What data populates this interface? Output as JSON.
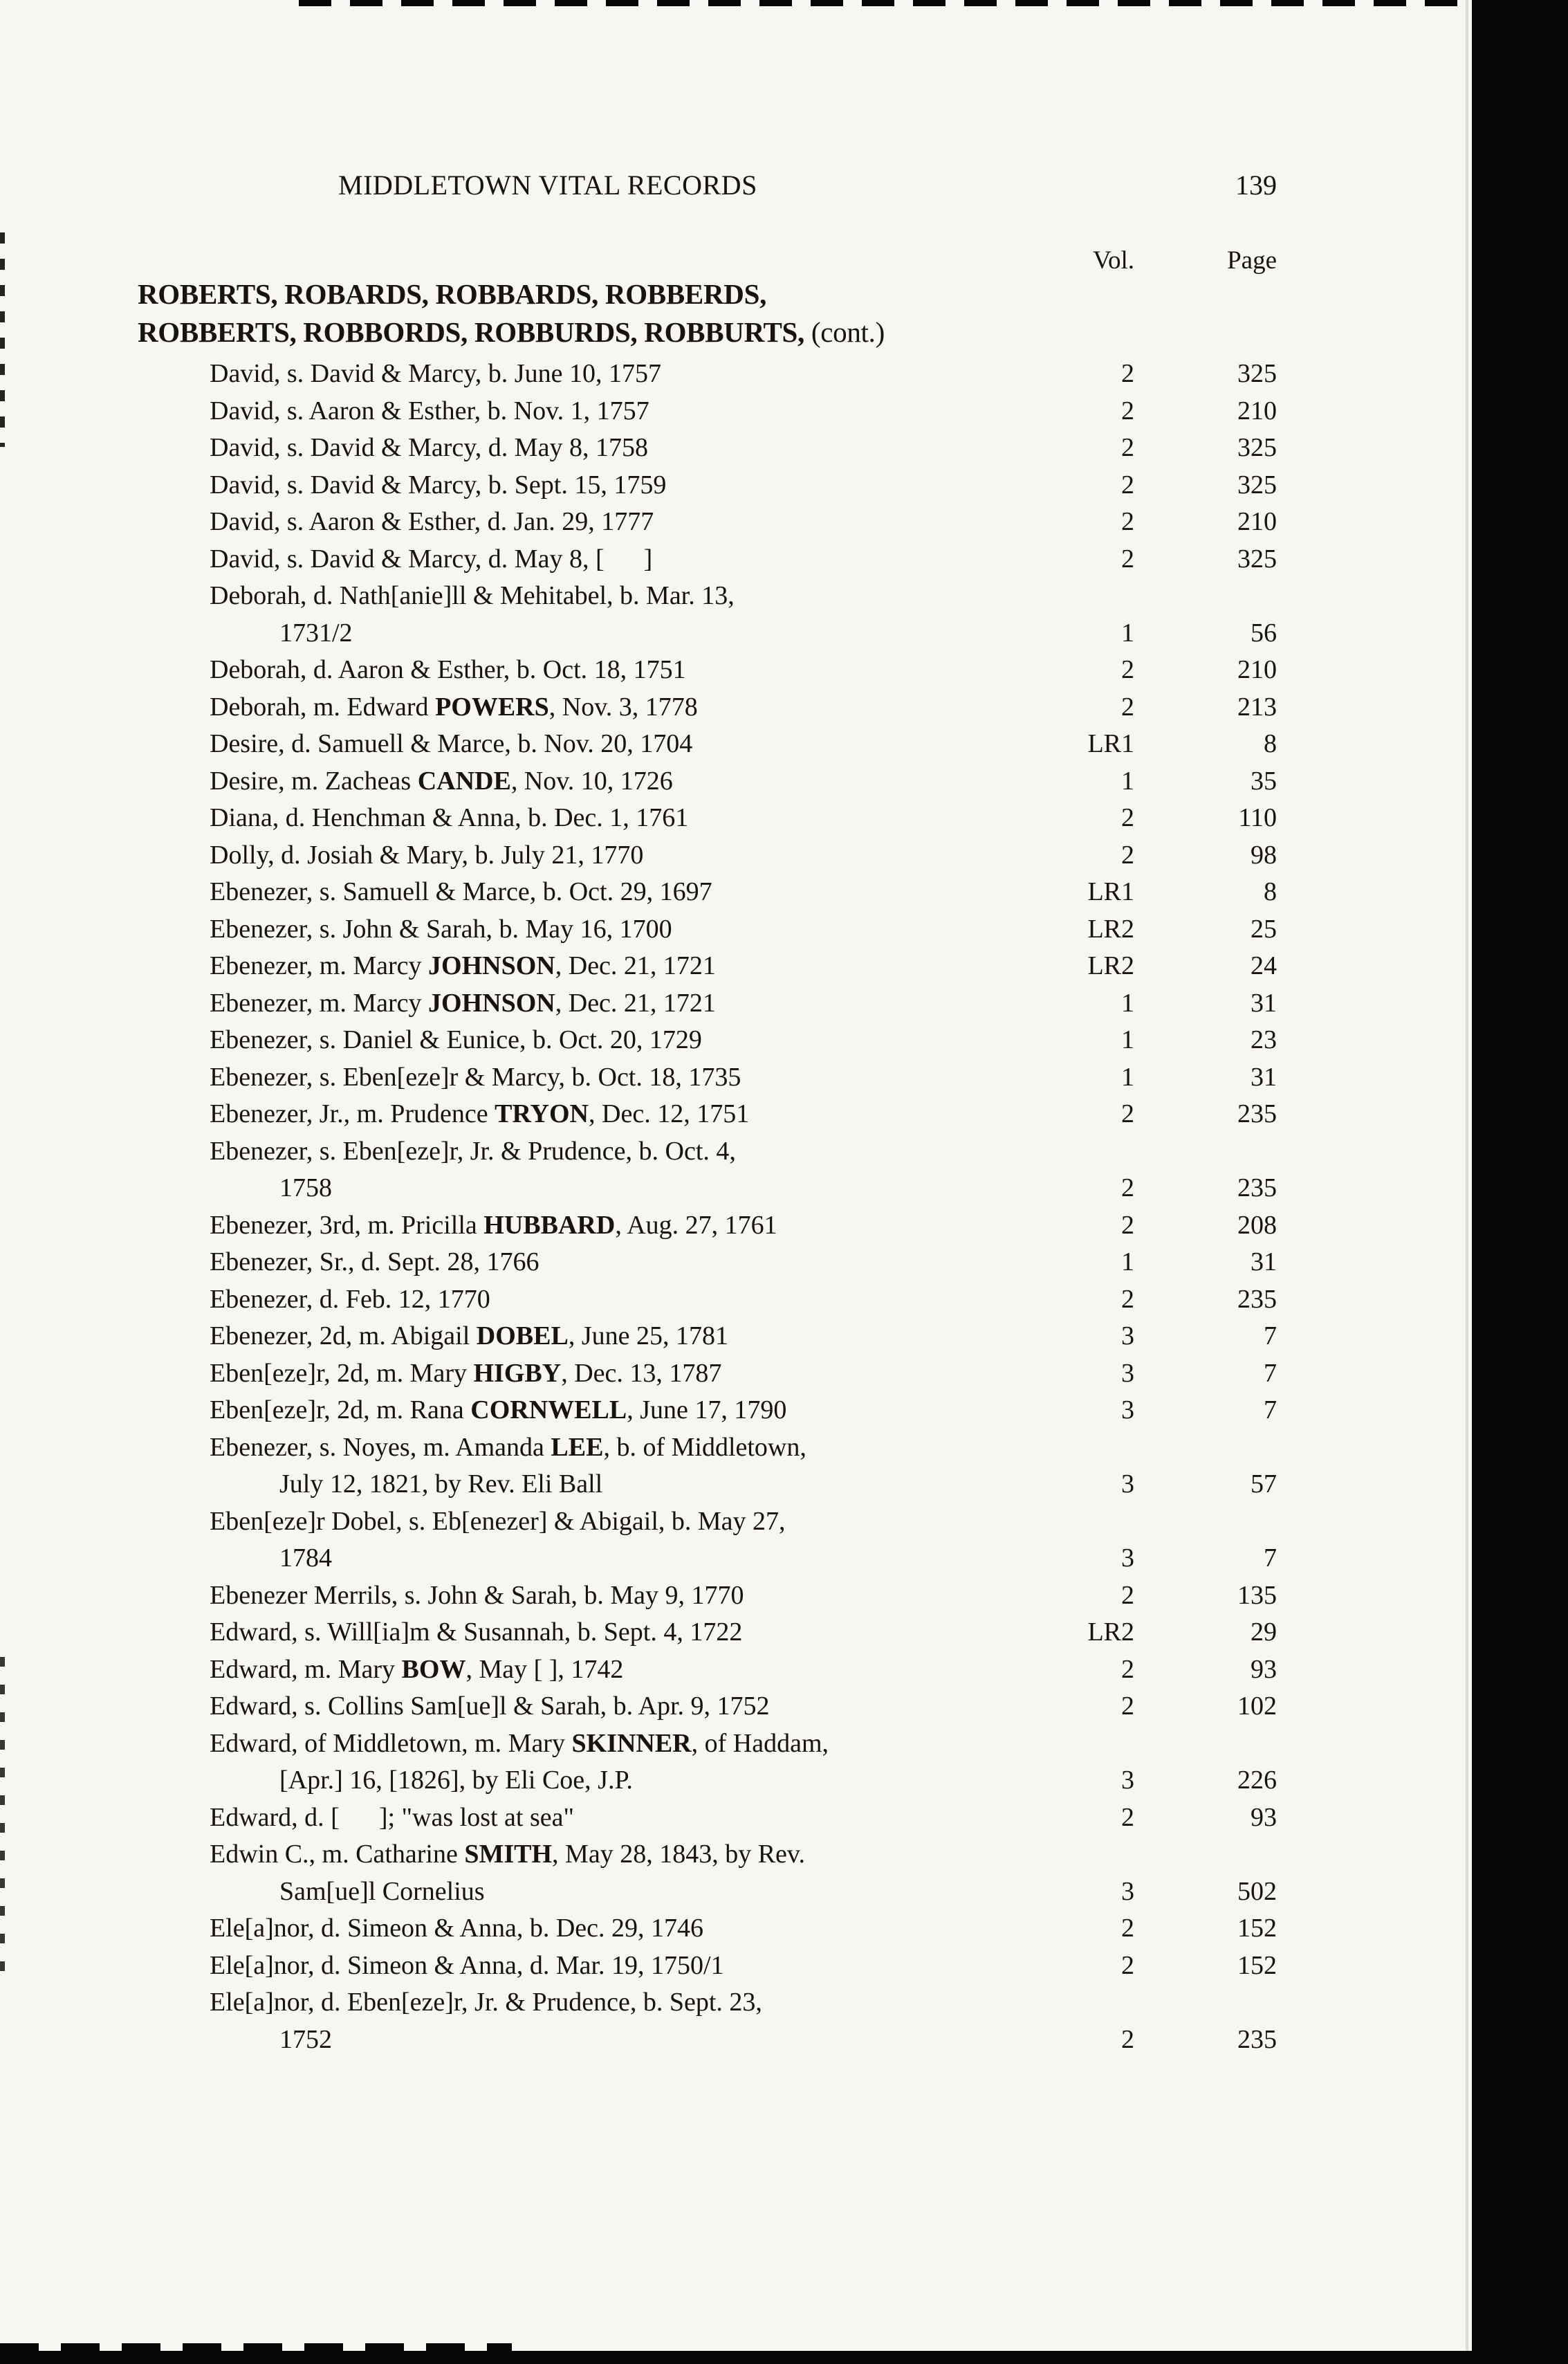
{
  "colors": {
    "paper": "#f7f6f3",
    "ink": "#17130f",
    "bar": "#070707"
  },
  "header": {
    "title": "MIDDLETOWN VITAL RECORDS",
    "page_number": "139"
  },
  "columns": {
    "vol_label": "Vol.",
    "page_label": "Page"
  },
  "family_heading": {
    "line1": "ROBERTS, ROBARDS, ROBBARDS, ROBBERDS,",
    "line2": "ROBBERTS, ROBBORDS, ROBBURDS, ROBBURTS,",
    "line2_note": " (cont.)"
  },
  "records": [
    {
      "segments": [
        {
          "t": "David, s. David & Marcy, b. June 10, 1757"
        }
      ],
      "vol": "2",
      "page": "325"
    },
    {
      "segments": [
        {
          "t": "David, s. Aaron & Esther, b. Nov. 1, 1757"
        }
      ],
      "vol": "2",
      "page": "210"
    },
    {
      "segments": [
        {
          "t": "David, s. David & Marcy, d. May 8, 1758"
        }
      ],
      "vol": "2",
      "page": "325"
    },
    {
      "segments": [
        {
          "t": "David, s. David & Marcy, b. Sept. 15, 1759"
        }
      ],
      "vol": "2",
      "page": "325"
    },
    {
      "segments": [
        {
          "t": "David, s. Aaron & Esther, d. Jan. 29, 1777"
        }
      ],
      "vol": "2",
      "page": "210"
    },
    {
      "segments": [
        {
          "t": "David, s. David & Marcy, d. May 8, [      ]"
        }
      ],
      "vol": "2",
      "page": "325"
    },
    {
      "segments": [
        {
          "t": "Deborah, d. Nath[anie]ll & Mehitabel, b. Mar. 13,"
        }
      ],
      "vol": "",
      "page": ""
    },
    {
      "cont": true,
      "segments": [
        {
          "t": "1731/2"
        }
      ],
      "vol": "1",
      "page": "56"
    },
    {
      "segments": [
        {
          "t": "Deborah, d. Aaron & Esther, b. Oct. 18, 1751"
        }
      ],
      "vol": "2",
      "page": "210"
    },
    {
      "segments": [
        {
          "t": "Deborah, m. Edward "
        },
        {
          "t": "POWERS",
          "b": true
        },
        {
          "t": ", Nov. 3, 1778"
        }
      ],
      "vol": "2",
      "page": "213"
    },
    {
      "segments": [
        {
          "t": "Desire, d. Samuell & Marce, b. Nov. 20, 1704"
        }
      ],
      "vol": "LR1",
      "page": "8"
    },
    {
      "segments": [
        {
          "t": "Desire, m. Zacheas "
        },
        {
          "t": "CANDE",
          "b": true
        },
        {
          "t": ", Nov. 10, 1726"
        }
      ],
      "vol": "1",
      "page": "35"
    },
    {
      "segments": [
        {
          "t": "Diana, d. Henchman & Anna, b. Dec. 1, 1761"
        }
      ],
      "vol": "2",
      "page": "110"
    },
    {
      "segments": [
        {
          "t": "Dolly, d. Josiah & Mary, b. July 21, 1770"
        }
      ],
      "vol": "2",
      "page": "98"
    },
    {
      "segments": [
        {
          "t": "Ebenezer, s. Samuell & Marce, b. Oct. 29, 1697"
        }
      ],
      "vol": "LR1",
      "page": "8"
    },
    {
      "segments": [
        {
          "t": "Ebenezer, s. John & Sarah, b. May 16, 1700"
        }
      ],
      "vol": "LR2",
      "page": "25"
    },
    {
      "segments": [
        {
          "t": "Ebenezer, m. Marcy "
        },
        {
          "t": "JOHNSON",
          "b": true
        },
        {
          "t": ", Dec. 21, 1721"
        }
      ],
      "vol": "LR2",
      "page": "24"
    },
    {
      "segments": [
        {
          "t": "Ebenezer, m. Marcy "
        },
        {
          "t": "JOHNSON",
          "b": true
        },
        {
          "t": ", Dec. 21, 1721"
        }
      ],
      "vol": "1",
      "page": "31"
    },
    {
      "segments": [
        {
          "t": "Ebenezer, s. Daniel & Eunice, b. Oct. 20, 1729"
        }
      ],
      "vol": "1",
      "page": "23"
    },
    {
      "segments": [
        {
          "t": "Ebenezer, s. Eben[eze]r & Marcy, b. Oct. 18, 1735"
        }
      ],
      "vol": "1",
      "page": "31"
    },
    {
      "segments": [
        {
          "t": "Ebenezer, Jr., m. Prudence "
        },
        {
          "t": "TRYON",
          "b": true
        },
        {
          "t": ", Dec. 12, 1751"
        }
      ],
      "vol": "2",
      "page": "235"
    },
    {
      "segments": [
        {
          "t": "Ebenezer, s. Eben[eze]r, Jr. & Prudence, b. Oct. 4,"
        }
      ],
      "vol": "",
      "page": ""
    },
    {
      "cont": true,
      "segments": [
        {
          "t": "1758"
        }
      ],
      "vol": "2",
      "page": "235"
    },
    {
      "segments": [
        {
          "t": "Ebenezer, 3rd, m. Pricilla "
        },
        {
          "t": "HUBBARD",
          "b": true
        },
        {
          "t": ", Aug. 27, 1761"
        }
      ],
      "vol": "2",
      "page": "208"
    },
    {
      "segments": [
        {
          "t": "Ebenezer, Sr., d. Sept. 28, 1766"
        }
      ],
      "vol": "1",
      "page": "31"
    },
    {
      "segments": [
        {
          "t": "Ebenezer, d. Feb. 12, 1770"
        }
      ],
      "vol": "2",
      "page": "235"
    },
    {
      "segments": [
        {
          "t": "Ebenezer, 2d, m. Abigail "
        },
        {
          "t": "DOBEL",
          "b": true
        },
        {
          "t": ", June 25, 1781"
        }
      ],
      "vol": "3",
      "page": "7"
    },
    {
      "segments": [
        {
          "t": "Eben[eze]r, 2d, m. Mary "
        },
        {
          "t": "HIGBY",
          "b": true
        },
        {
          "t": ", Dec. 13, 1787"
        }
      ],
      "vol": "3",
      "page": "7"
    },
    {
      "segments": [
        {
          "t": "Eben[eze]r, 2d, m. Rana "
        },
        {
          "t": "CORNWELL",
          "b": true
        },
        {
          "t": ", June 17, 1790"
        }
      ],
      "vol": "3",
      "page": "7"
    },
    {
      "segments": [
        {
          "t": "Ebenezer, s. Noyes, m. Amanda "
        },
        {
          "t": "LEE",
          "b": true
        },
        {
          "t": ", b. of Middletown,"
        }
      ],
      "vol": "",
      "page": ""
    },
    {
      "cont": true,
      "segments": [
        {
          "t": "July 12, 1821, by Rev. Eli Ball"
        }
      ],
      "vol": "3",
      "page": "57"
    },
    {
      "segments": [
        {
          "t": "Eben[eze]r Dobel, s. Eb[enezer] & Abigail, b. May 27,"
        }
      ],
      "vol": "",
      "page": ""
    },
    {
      "cont": true,
      "segments": [
        {
          "t": "1784"
        }
      ],
      "vol": "3",
      "page": "7"
    },
    {
      "segments": [
        {
          "t": "Ebenezer Merrils, s. John & Sarah, b. May 9, 1770"
        }
      ],
      "vol": "2",
      "page": "135"
    },
    {
      "segments": [
        {
          "t": "Edward, s. Will[ia]m & Susannah, b. Sept. 4, 1722"
        }
      ],
      "vol": "LR2",
      "page": "29"
    },
    {
      "segments": [
        {
          "t": "Edward, m. Mary "
        },
        {
          "t": "BOW",
          "b": true
        },
        {
          "t": ", May [ ], 1742"
        }
      ],
      "vol": "2",
      "page": "93"
    },
    {
      "segments": [
        {
          "t": "Edward, s. Collins Sam[ue]l & Sarah, b. Apr. 9, 1752"
        }
      ],
      "vol": "2",
      "page": "102"
    },
    {
      "segments": [
        {
          "t": "Edward, of Middletown, m. Mary "
        },
        {
          "t": "SKINNER",
          "b": true
        },
        {
          "t": ", of Haddam,"
        }
      ],
      "vol": "",
      "page": ""
    },
    {
      "cont": true,
      "segments": [
        {
          "t": "[Apr.] 16, [1826], by Eli Coe, J.P."
        }
      ],
      "vol": "3",
      "page": "226"
    },
    {
      "segments": [
        {
          "t": "Edward, d. [      ]; \"was lost at sea\""
        }
      ],
      "vol": "2",
      "page": "93"
    },
    {
      "segments": [
        {
          "t": "Edwin C., m. Catharine "
        },
        {
          "t": "SMITH",
          "b": true
        },
        {
          "t": ", May 28, 1843, by Rev."
        }
      ],
      "vol": "",
      "page": ""
    },
    {
      "cont": true,
      "segments": [
        {
          "t": "Sam[ue]l Cornelius"
        }
      ],
      "vol": "3",
      "page": "502"
    },
    {
      "segments": [
        {
          "t": "Ele[a]nor, d. Simeon & Anna, b. Dec. 29, 1746"
        }
      ],
      "vol": "2",
      "page": "152"
    },
    {
      "segments": [
        {
          "t": "Ele[a]nor, d. Simeon & Anna, d. Mar. 19, 1750/1"
        }
      ],
      "vol": "2",
      "page": "152"
    },
    {
      "segments": [
        {
          "t": "Ele[a]nor, d. Eben[eze]r, Jr. & Prudence, b. Sept. 23,"
        }
      ],
      "vol": "",
      "page": ""
    },
    {
      "cont": true,
      "segments": [
        {
          "t": "1752"
        }
      ],
      "vol": "2",
      "page": "235"
    }
  ]
}
